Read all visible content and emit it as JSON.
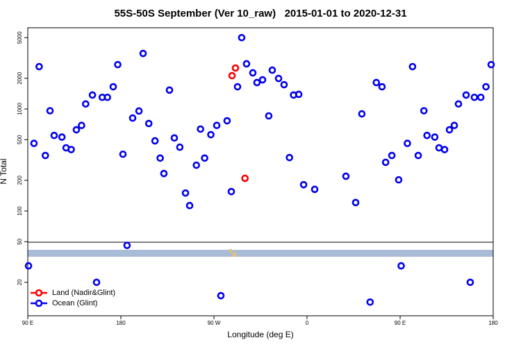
{
  "chart_data": {
    "type": "scatter",
    "title": "55S-50S September (Ver 10_raw)   2015-01-01 to 2020-12-31",
    "x_label": "Longitude (deg E)",
    "y_label": "N Total",
    "log_y": true,
    "legend": "bottom-left",
    "xlim": [
      90,
      540
    ],
    "xticks": [
      {
        "value": 90,
        "label": "90 E"
      },
      {
        "value": 180,
        "label": "180"
      },
      {
        "value": 270,
        "label": "90 W"
      },
      {
        "value": 360,
        "label": "0"
      },
      {
        "value": 450,
        "label": "90 E"
      },
      {
        "value": 540,
        "label": "180"
      }
    ],
    "ylim": [
      9.4,
      6250
    ],
    "yticks": [
      20,
      50,
      100,
      200,
      500,
      1000,
      2000,
      5000
    ],
    "series": [
      {
        "name": "Land (Nadir&Glint)",
        "color": "#ff0000",
        "x": [
          287.5,
          290.8,
          300
        ],
        "values": [
          2120,
          2520,
          209
        ]
      },
      {
        "name": "Ocean (Glint)",
        "color": "#0000ee",
        "x": [
          90.7,
          96,
          101,
          107,
          111.5,
          115.5,
          123,
          127,
          132,
          137,
          142,
          146,
          152.5,
          156.5,
          162,
          167,
          172.6,
          177,
          182,
          186,
          191.4,
          197.5,
          201.5,
          207,
          213,
          218,
          221.6,
          227,
          231.7,
          237,
          242.5,
          246.5,
          253,
          257,
          261,
          267,
          272.7,
          276.7,
          282.7,
          286.8,
          292.8,
          296.8,
          301.5,
          307.6,
          311.6,
          317,
          323,
          326.4,
          332.5,
          337.8,
          343,
          347,
          352,
          356.7,
          367.4,
          397.6,
          407,
          413,
          421,
          427,
          432.5,
          436,
          442,
          448.6,
          451,
          457,
          462,
          467.5,
          473,
          476,
          483.5,
          487.6,
          493,
          497.7,
          502.4,
          506.4,
          513.8,
          517.8,
          521.8,
          528,
          533,
          538
        ],
        "values": [
          29,
          460,
          2600,
          350,
          960,
          550,
          530,
          416,
          400,
          625,
          690,
          1120,
          1370,
          20,
          1300,
          1300,
          1650,
          2720,
          360,
          46,
          815,
          955,
          3500,
          720,
          487,
          330,
          233,
          1530,
          520,
          422,
          150,
          113,
          281,
          635,
          330,
          560,
          690,
          14.8,
          766,
          155,
          1650,
          5000,
          2770,
          2260,
          1815,
          1930,
          855,
          2400,
          1990,
          1730,
          334,
          1370,
          1390,
          181,
          163,
          219,
          121,
          895,
          12.8,
          1815,
          1650,
          300,
          350,
          202,
          29,
          460,
          2600,
          350,
          960,
          550,
          530,
          416,
          400,
          625,
          690,
          1120,
          1370,
          20,
          1300,
          1300,
          1650,
          2720
        ]
      }
    ]
  }
}
